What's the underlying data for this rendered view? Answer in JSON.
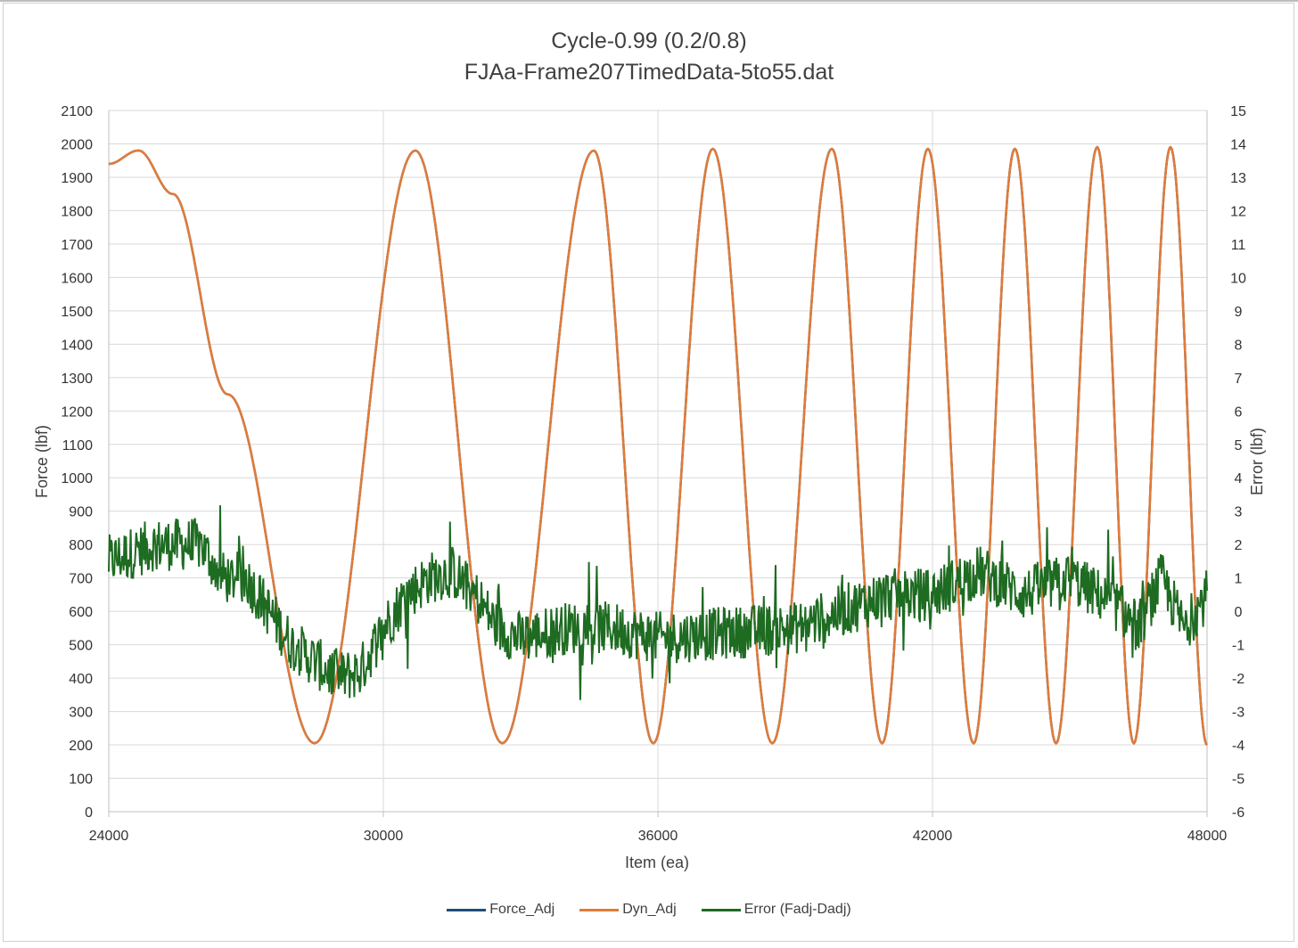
{
  "chart_data": {
    "type": "line",
    "title": "Cycle-0.99 (0.2/0.8)",
    "subtitle": "FJAa-Frame207TimedData-5to55.dat",
    "xlabel": "Item (ea)",
    "ylabel": "Force (lbf)",
    "y2label": "Error (lbf)",
    "xlim": [
      24000,
      48000
    ],
    "ylim": [
      0,
      2100
    ],
    "y2lim": [
      -6,
      15
    ],
    "x_ticks": [
      "24000",
      "30000",
      "36000",
      "42000",
      "48000"
    ],
    "y_ticks": [
      "0",
      "100",
      "200",
      "300",
      "400",
      "500",
      "600",
      "700",
      "800",
      "900",
      "1000",
      "1100",
      "1200",
      "1300",
      "1400",
      "1500",
      "1600",
      "1700",
      "1800",
      "1900",
      "2000",
      "2100"
    ],
    "y2_ticks": [
      "-6",
      "-5",
      "-4",
      "-3",
      "-2",
      "-1",
      "0",
      "1",
      "2",
      "3",
      "4",
      "5",
      "6",
      "7",
      "8",
      "9",
      "10",
      "11",
      "12",
      "13",
      "14",
      "15"
    ],
    "grid": true,
    "legend_position": "bottom",
    "series": [
      {
        "name": "Force_Adj",
        "axis": "left",
        "color": "#1f4e79",
        "x": [
          24000,
          24650,
          25400,
          26600,
          28500,
          30700,
          32600,
          34600,
          35900,
          37200,
          38500,
          39800,
          40900,
          41900,
          42900,
          43800,
          44700,
          45600,
          46400,
          47200,
          48000
        ],
        "y": [
          1940,
          1980,
          1850,
          1250,
          205,
          1980,
          205,
          1980,
          205,
          1985,
          205,
          1985,
          205,
          1985,
          205,
          1985,
          205,
          1990,
          205,
          1990,
          200
        ]
      },
      {
        "name": "Dyn_Adj",
        "axis": "left",
        "color": "#e07b39",
        "x": [
          24000,
          24650,
          25400,
          26600,
          28500,
          30700,
          32600,
          34600,
          35900,
          37200,
          38500,
          39800,
          40900,
          41900,
          42900,
          43800,
          44700,
          45600,
          46400,
          47200,
          48000
        ],
        "y": [
          1940,
          1980,
          1850,
          1250,
          205,
          1980,
          205,
          1980,
          205,
          1985,
          205,
          1985,
          205,
          1985,
          205,
          1985,
          205,
          1990,
          205,
          1990,
          200
        ]
      },
      {
        "name": "Error (Fadj-Dadj)",
        "axis": "right",
        "color": "#1e6b22",
        "x": [
          24000,
          25000,
          26000,
          26500,
          27000,
          27500,
          28000,
          28500,
          29000,
          29500,
          30000,
          30500,
          31000,
          31500,
          32000,
          32500,
          33000,
          34000,
          35000,
          36000,
          37000,
          38000,
          39000,
          40000,
          41000,
          42000,
          43000,
          44000,
          45000,
          46000,
          46500,
          47000,
          47500,
          48000
        ],
        "y": [
          1.5,
          2.0,
          2.0,
          1.0,
          1.0,
          0.0,
          -1.0,
          -1.5,
          -2.0,
          -1.8,
          -0.5,
          0.5,
          1.0,
          1.2,
          0.5,
          -0.5,
          -0.8,
          -0.5,
          -0.5,
          -0.8,
          -0.7,
          -0.6,
          -0.5,
          0.0,
          0.5,
          0.5,
          1.2,
          0.5,
          1.0,
          0.2,
          -0.5,
          1.0,
          -0.5,
          0.5
        ]
      }
    ]
  }
}
